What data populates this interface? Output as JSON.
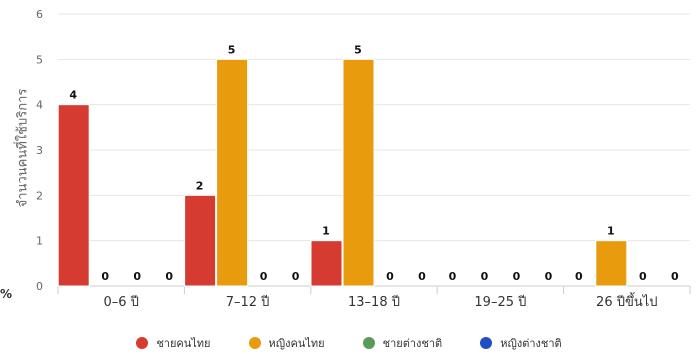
{
  "chart_data": {
    "type": "bar",
    "categories": [
      "0–6 ปี",
      "7–12 ปี",
      "13–18 ปี",
      "19–25 ปี",
      "26 ปีขึ้นไป"
    ],
    "series": [
      {
        "name": "ชายคนไทย",
        "color": "#d63b32",
        "values": [
          4,
          2,
          1,
          0,
          0
        ]
      },
      {
        "name": "หญิงคนไทย",
        "color": "#e89b0c",
        "values": [
          0,
          5,
          5,
          0,
          1
        ]
      },
      {
        "name": "ชายต่างชาติ",
        "color": "#5a9b5a",
        "values": [
          0,
          0,
          0,
          0,
          0
        ]
      },
      {
        "name": "หญิงต่างชาติ",
        "color": "#1f4fc4",
        "values": [
          0,
          0,
          0,
          0,
          0
        ]
      }
    ],
    "ylabel": "จำนวนคนที่ใช้บริการ",
    "xlabel": "",
    "ylim": [
      0,
      6
    ],
    "yticks": [
      0,
      1,
      2,
      3,
      4,
      5,
      6
    ],
    "grid": true,
    "legend_position": "bottom",
    "corner_label": "%"
  }
}
